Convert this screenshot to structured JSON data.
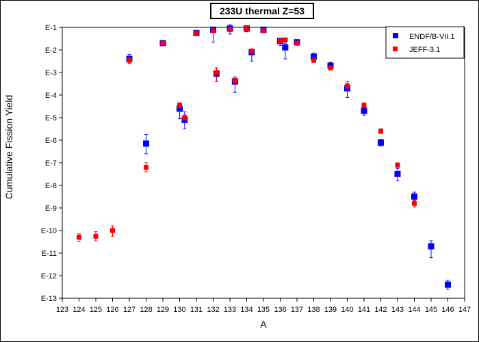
{
  "chart_data": {
    "type": "scatter",
    "title": "233U thermal Z=53",
    "xlabel": "A",
    "ylabel": "Cumulative Fission Yield",
    "xlim": [
      123,
      147
    ],
    "ylim_exponent": [
      -13,
      -1
    ],
    "y_scale": "log",
    "x_ticks": [
      "123",
      "124",
      "125",
      "126",
      "127",
      "128",
      "129",
      "130",
      "131",
      "132",
      "133",
      "134",
      "135",
      "136",
      "137",
      "138",
      "139",
      "140",
      "141",
      "142",
      "143",
      "144",
      "145",
      "146",
      "147"
    ],
    "y_ticks": [
      "E-1",
      "E-2",
      "E-3",
      "E-4",
      "E-5",
      "E-6",
      "E-7",
      "E-8",
      "E-9",
      "E-10",
      "E-11",
      "E-12",
      "E-13"
    ],
    "legend_position": "top-right",
    "series": [
      {
        "name": "ENDF/B-VII.1",
        "color": "#0000ff",
        "marker": "square",
        "points": [
          {
            "x": 127,
            "y": 0.004,
            "err_lo": 0.0025,
            "err_hi": 0.0063
          },
          {
            "x": 128,
            "y": 7.1e-07,
            "err_lo": 2.5e-07,
            "err_hi": 1.8e-06
          },
          {
            "x": 129,
            "y": 0.02,
            "err_lo": 0.016,
            "err_hi": 0.025
          },
          {
            "x": 130,
            "y": 2.5e-05,
            "err_lo": 8.9e-06,
            "err_hi": 4.5e-05
          },
          {
            "x": 130.3,
            "y": 7.9e-06,
            "err_lo": 3.2e-06,
            "err_hi": 1.8e-05
          },
          {
            "x": 131,
            "y": 0.056,
            "err_lo": 0.045,
            "err_hi": 0.071
          },
          {
            "x": 132,
            "y": 0.079,
            "err_lo": 0.022,
            "err_hi": 0.1
          },
          {
            "x": 132.2,
            "y": 0.00089,
            "err_lo": 0.0004,
            "err_hi": 0.0016
          },
          {
            "x": 133,
            "y": 0.089,
            "err_lo": 0.05,
            "err_hi": 0.13
          },
          {
            "x": 133.3,
            "y": 0.0004,
            "err_lo": 0.00013,
            "err_hi": 0.00063
          },
          {
            "x": 134,
            "y": 0.089,
            "err_lo": 0.063,
            "err_hi": 0.11
          },
          {
            "x": 134.3,
            "y": 0.0079,
            "err_lo": 0.0032,
            "err_hi": 0.011
          },
          {
            "x": 135,
            "y": 0.079,
            "err_lo": 0.063,
            "err_hi": 0.1
          },
          {
            "x": 136,
            "y": 0.025,
            "err_lo": 0.016,
            "err_hi": 0.032
          },
          {
            "x": 136.3,
            "y": 0.013,
            "err_lo": 0.004,
            "err_hi": 0.02
          },
          {
            "x": 137,
            "y": 0.022,
            "err_lo": 0.016,
            "err_hi": 0.028
          },
          {
            "x": 138,
            "y": 0.005,
            "err_lo": 0.0032,
            "err_hi": 0.0071
          },
          {
            "x": 139,
            "y": 0.002,
            "err_lo": 0.0013,
            "err_hi": 0.0028
          },
          {
            "x": 140,
            "y": 0.0002,
            "err_lo": 7.9e-05,
            "err_hi": 0.00032
          },
          {
            "x": 141,
            "y": 2e-05,
            "err_lo": 1.3e-05,
            "err_hi": 3.2e-05
          },
          {
            "x": 142,
            "y": 7.9e-07,
            "err_lo": 5.6e-07,
            "err_hi": 1.1e-06
          },
          {
            "x": 143,
            "y": 3.2e-08,
            "err_lo": 1.6e-08,
            "err_hi": 5.6e-08
          },
          {
            "x": 144,
            "y": 3.2e-09,
            "err_lo": 2.2e-09,
            "err_hi": 5e-09
          },
          {
            "x": 145,
            "y": 2e-11,
            "err_lo": 6.3e-12,
            "err_hi": 3.5e-11
          },
          {
            "x": 146,
            "y": 4e-13,
            "err_lo": 2.5e-13,
            "err_hi": 6.3e-13
          }
        ]
      },
      {
        "name": "JEFF-3.1",
        "color": "#ff0000",
        "marker": "square",
        "points": [
          {
            "x": 124,
            "y": 5e-11,
            "err_lo": 3.2e-11,
            "err_hi": 7.1e-11
          },
          {
            "x": 125,
            "y": 5.6e-11,
            "err_lo": 3.5e-11,
            "err_hi": 8.9e-11
          },
          {
            "x": 126,
            "y": 1e-10,
            "err_lo": 5.6e-11,
            "err_hi": 1.6e-10
          },
          {
            "x": 127,
            "y": 0.0035,
            "err_lo": 0.0028,
            "err_hi": 0.0045
          },
          {
            "x": 128,
            "y": 6.3e-08,
            "err_lo": 4e-08,
            "err_hi": 1e-07
          },
          {
            "x": 129,
            "y": 0.02,
            "err_lo": 0.018,
            "err_hi": 0.022
          },
          {
            "x": 130,
            "y": 3.5e-05,
            "err_lo": 2.8e-05,
            "err_hi": 4.5e-05
          },
          {
            "x": 130.3,
            "y": 1e-05,
            "err_lo": 7.9e-06,
            "err_hi": 1.3e-05
          },
          {
            "x": 131,
            "y": 0.056,
            "err_lo": 0.05,
            "err_hi": 0.063
          },
          {
            "x": 132,
            "y": 0.071,
            "err_lo": 0.063,
            "err_hi": 0.089
          },
          {
            "x": 132.2,
            "y": 0.001,
            "err_lo": 0.0004,
            "err_hi": 0.0016
          },
          {
            "x": 133,
            "y": 0.079,
            "err_lo": 0.071,
            "err_hi": 0.089
          },
          {
            "x": 133.3,
            "y": 0.00045,
            "err_lo": 0.00035,
            "err_hi": 0.00056
          },
          {
            "x": 134,
            "y": 0.089,
            "err_lo": 0.079,
            "err_hi": 0.1
          },
          {
            "x": 134.3,
            "y": 0.0089,
            "err_lo": 0.0071,
            "err_hi": 0.011
          },
          {
            "x": 135,
            "y": 0.071,
            "err_lo": 0.063,
            "err_hi": 0.079
          },
          {
            "x": 136,
            "y": 0.025,
            "err_lo": 0.022,
            "err_hi": 0.028
          },
          {
            "x": 136.3,
            "y": 0.028,
            "err_lo": 0.025,
            "err_hi": 0.032
          },
          {
            "x": 137,
            "y": 0.02,
            "err_lo": 0.018,
            "err_hi": 0.022
          },
          {
            "x": 138,
            "y": 0.0035,
            "err_lo": 0.0028,
            "err_hi": 0.0045
          },
          {
            "x": 139,
            "y": 0.0016,
            "err_lo": 0.0013,
            "err_hi": 0.002
          },
          {
            "x": 140,
            "y": 0.00025,
            "err_lo": 0.00016,
            "err_hi": 0.0004
          },
          {
            "x": 141,
            "y": 3.5e-05,
            "err_lo": 2.8e-05,
            "err_hi": 4.5e-05
          },
          {
            "x": 142,
            "y": 2.5e-06,
            "err_lo": 2e-06,
            "err_hi": 3.2e-06
          },
          {
            "x": 143,
            "y": 7.9e-08,
            "err_lo": 6.3e-08,
            "err_hi": 1e-07
          },
          {
            "x": 144,
            "y": 1.6e-09,
            "err_lo": 1.1e-09,
            "err_hi": 2.2e-09
          }
        ]
      }
    ]
  }
}
